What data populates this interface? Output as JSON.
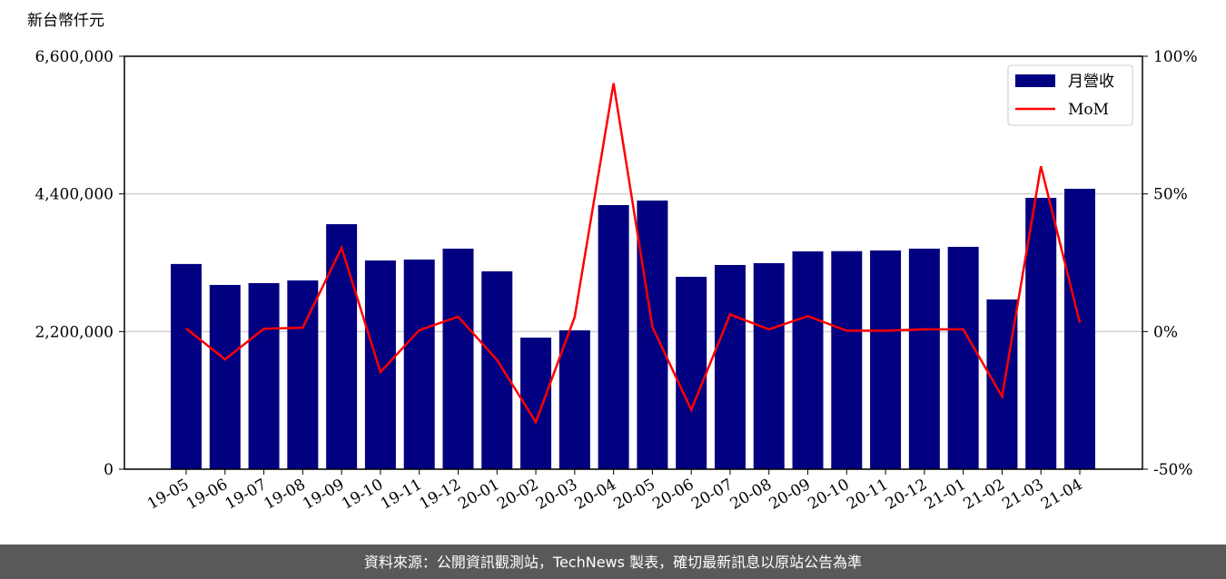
{
  "chart_data": {
    "type": "bar_line",
    "y_label": "新台幣仟元",
    "categories": [
      "19-05",
      "19-06",
      "19-07",
      "19-08",
      "19-09",
      "19-10",
      "19-11",
      "19-12",
      "20-01",
      "20-02",
      "20-03",
      "20-04",
      "20-05",
      "20-06",
      "20-07",
      "20-08",
      "20-09",
      "20-10",
      "20-11",
      "20-12",
      "21-01",
      "21-02",
      "21-03",
      "21-04"
    ],
    "series": [
      {
        "name": "月營收",
        "type": "bar",
        "color": "#000080",
        "values": [
          3280000,
          2945000,
          2974000,
          3017000,
          3916000,
          3336000,
          3351000,
          3525000,
          3162000,
          2103000,
          2219000,
          4221000,
          4294000,
          3075000,
          3264000,
          3293000,
          3481000,
          3485000,
          3496000,
          3525000,
          3554000,
          2713000,
          4337000,
          4482000
        ]
      },
      {
        "name": "MoM",
        "type": "line",
        "color": "#ff0000",
        "axis": "y2",
        "values": [
          1.1,
          -10.1,
          1.0,
          1.4,
          30.4,
          -14.7,
          0.5,
          5.4,
          -10.3,
          -32.9,
          5.3,
          90.2,
          1.7,
          -28.4,
          6.2,
          0.8,
          5.6,
          0.3,
          0.3,
          0.8,
          0.8,
          -23.6,
          60.0,
          3.2
        ]
      }
    ],
    "ylim": [
      0,
      6600000
    ],
    "yticks": [
      {
        "value": 0,
        "label": "0"
      },
      {
        "value": 2200000,
        "label": "2,200,000"
      },
      {
        "value": 4400000,
        "label": "4,400,000"
      },
      {
        "value": 6600000,
        "label": "6,600,000"
      }
    ],
    "y2lim": [
      -50,
      100
    ],
    "y2ticks": [
      {
        "value": -50,
        "label": "-50%"
      },
      {
        "value": 0,
        "label": "0%"
      },
      {
        "value": 50,
        "label": "50%"
      },
      {
        "value": 100,
        "label": "100%"
      }
    ],
    "grid": true,
    "legend": "upper right",
    "footer": "資料來源：公開資訊觀測站，TechNews 製表，確切最新訊息以原站公告為準"
  }
}
